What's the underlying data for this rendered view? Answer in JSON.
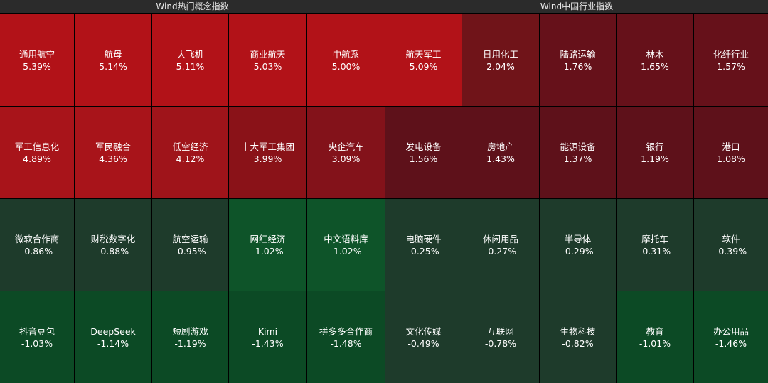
{
  "headers": {
    "left": "Wind热门概念指数",
    "right": "Wind中国行业指数"
  },
  "left_tiles": [
    {
      "name": "通用航空",
      "value": "5.39%",
      "color": "#b21218"
    },
    {
      "name": "航母",
      "value": "5.14%",
      "color": "#b21218"
    },
    {
      "name": "大飞机",
      "value": "5.11%",
      "color": "#b21218"
    },
    {
      "name": "商业航天",
      "value": "5.03%",
      "color": "#b21218"
    },
    {
      "name": "中航系",
      "value": "5.00%",
      "color": "#b21218"
    },
    {
      "name": "军工信息化",
      "value": "4.89%",
      "color": "#a8141a"
    },
    {
      "name": "军民融合",
      "value": "4.36%",
      "color": "#a8141a"
    },
    {
      "name": "低空经济",
      "value": "4.12%",
      "color": "#9f141a"
    },
    {
      "name": "十大军工集团",
      "value": "3.99%",
      "color": "#8a1218"
    },
    {
      "name": "央企汽车",
      "value": "3.09%",
      "color": "#83121a"
    },
    {
      "name": "微软合作商",
      "value": "-0.86%",
      "color": "#1e3b2b"
    },
    {
      "name": "财税数字化",
      "value": "-0.88%",
      "color": "#1e3b2b"
    },
    {
      "name": "航空运输",
      "value": "-0.95%",
      "color": "#1e3b2b"
    },
    {
      "name": "网红经济",
      "value": "-1.02%",
      "color": "#0e5429"
    },
    {
      "name": "中文语料库",
      "value": "-1.02%",
      "color": "#0e5429"
    },
    {
      "name": "抖音豆包",
      "value": "-1.03%",
      "color": "#0c4a25"
    },
    {
      "name": "DeepSeek",
      "value": "-1.14%",
      "color": "#0c4a25"
    },
    {
      "name": "短剧游戏",
      "value": "-1.19%",
      "color": "#0c4a25"
    },
    {
      "name": "Kimi",
      "value": "-1.43%",
      "color": "#0c4a25"
    },
    {
      "name": "拼多多合作商",
      "value": "-1.48%",
      "color": "#0c4a25"
    }
  ],
  "right_tiles": [
    {
      "name": "航天军工",
      "value": "5.09%",
      "color": "#b21218"
    },
    {
      "name": "日用化工",
      "value": "2.04%",
      "color": "#701419"
    },
    {
      "name": "陆路运输",
      "value": "1.76%",
      "color": "#66111a"
    },
    {
      "name": "林木",
      "value": "1.65%",
      "color": "#66111a"
    },
    {
      "name": "化纤行业",
      "value": "1.57%",
      "color": "#66111a"
    },
    {
      "name": "发电设备",
      "value": "1.56%",
      "color": "#5e111a"
    },
    {
      "name": "房地产",
      "value": "1.43%",
      "color": "#5e111a"
    },
    {
      "name": "能源设备",
      "value": "1.37%",
      "color": "#5e111a"
    },
    {
      "name": "银行",
      "value": "1.19%",
      "color": "#5e111a"
    },
    {
      "name": "港口",
      "value": "1.08%",
      "color": "#5e111a"
    },
    {
      "name": "电脑硬件",
      "value": "-0.25%",
      "color": "#1e3b2b"
    },
    {
      "name": "休闲用品",
      "value": "-0.27%",
      "color": "#1e3b2b"
    },
    {
      "name": "半导体",
      "value": "-0.29%",
      "color": "#1e3b2b"
    },
    {
      "name": "摩托车",
      "value": "-0.31%",
      "color": "#1e3b2b"
    },
    {
      "name": "软件",
      "value": "-0.39%",
      "color": "#1e3b2b"
    },
    {
      "name": "文化传媒",
      "value": "-0.49%",
      "color": "#1e3b2b"
    },
    {
      "name": "互联网",
      "value": "-0.78%",
      "color": "#1e3b2b"
    },
    {
      "name": "生物科技",
      "value": "-0.82%",
      "color": "#1e3b2b"
    },
    {
      "name": "教育",
      "value": "-1.01%",
      "color": "#0c4a25"
    },
    {
      "name": "办公用品",
      "value": "-1.46%",
      "color": "#0c4a25"
    }
  ]
}
